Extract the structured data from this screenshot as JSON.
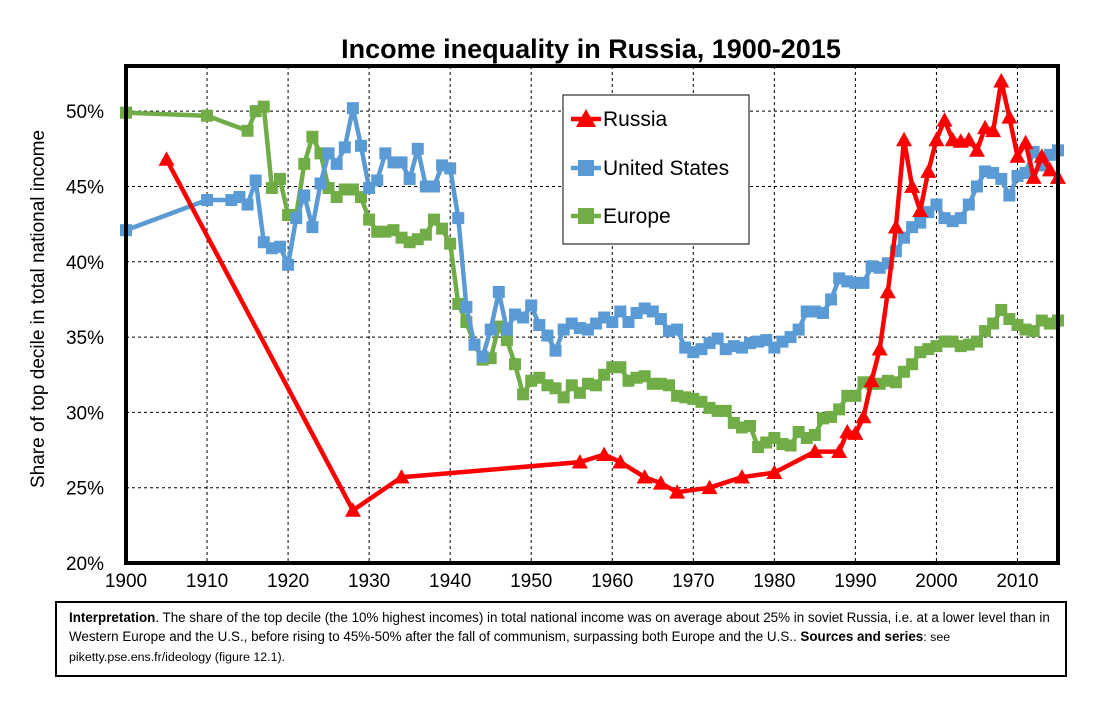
{
  "chart_data": {
    "type": "line",
    "title": "Income inequality in Russia, 1900-2015",
    "xlabel": "",
    "ylabel": "Share of top decile in total national income",
    "xlim": [
      1900,
      2015
    ],
    "ylim": [
      0.2,
      0.53
    ],
    "x_ticks": [
      1900,
      1910,
      1920,
      1930,
      1940,
      1950,
      1960,
      1970,
      1980,
      1990,
      2000,
      2010
    ],
    "x_tick_labels": [
      "1900",
      "1910",
      "1920",
      "1930",
      "1940",
      "1950",
      "1960",
      "1970",
      "1980",
      "1990",
      "2000",
      "2010"
    ],
    "y_ticks": [
      0.2,
      0.25,
      0.3,
      0.35,
      0.4,
      0.45,
      0.5
    ],
    "y_tick_labels": [
      "20%",
      "25%",
      "30%",
      "35%",
      "40%",
      "45%",
      "50%"
    ],
    "grid": true,
    "legend_position": "top-center",
    "series": [
      {
        "name": "Russia",
        "color": "#ff0000",
        "marker": "triangle",
        "points": [
          [
            1905,
            0.468
          ],
          [
            1928,
            0.235
          ],
          [
            1934,
            0.257
          ],
          [
            1956,
            0.267
          ],
          [
            1959,
            0.272
          ],
          [
            1961,
            0.267
          ],
          [
            1964,
            0.257
          ],
          [
            1966,
            0.253
          ],
          [
            1968,
            0.247
          ],
          [
            1972,
            0.25
          ],
          [
            1976,
            0.257
          ],
          [
            1980,
            0.26
          ],
          [
            1985,
            0.274
          ],
          [
            1988,
            0.274
          ],
          [
            1989,
            0.287
          ],
          [
            1990,
            0.286
          ],
          [
            1991,
            0.297
          ],
          [
            1992,
            0.321
          ],
          [
            1993,
            0.342
          ],
          [
            1994,
            0.38
          ],
          [
            1995,
            0.423
          ],
          [
            1996,
            0.481
          ],
          [
            1997,
            0.45
          ],
          [
            1998,
            0.434
          ],
          [
            1999,
            0.46
          ],
          [
            2000,
            0.481
          ],
          [
            2001,
            0.494
          ],
          [
            2002,
            0.481
          ],
          [
            2003,
            0.48
          ],
          [
            2004,
            0.481
          ],
          [
            2005,
            0.474
          ],
          [
            2006,
            0.489
          ],
          [
            2007,
            0.487
          ],
          [
            2008,
            0.52
          ],
          [
            2009,
            0.496
          ],
          [
            2010,
            0.47
          ],
          [
            2011,
            0.479
          ],
          [
            2012,
            0.456
          ],
          [
            2013,
            0.47
          ],
          [
            2014,
            0.461
          ],
          [
            2015,
            0.456
          ]
        ]
      },
      {
        "name": "United States",
        "color": "#5b9bd5",
        "marker": "square",
        "points": [
          [
            1900,
            0.421
          ],
          [
            1910,
            0.441
          ],
          [
            1913,
            0.441
          ],
          [
            1914,
            0.443
          ],
          [
            1915,
            0.438
          ],
          [
            1916,
            0.454
          ],
          [
            1917,
            0.413
          ],
          [
            1918,
            0.409
          ],
          [
            1919,
            0.41
          ],
          [
            1920,
            0.398
          ],
          [
            1921,
            0.429
          ],
          [
            1922,
            0.444
          ],
          [
            1923,
            0.423
          ],
          [
            1924,
            0.452
          ],
          [
            1925,
            0.472
          ],
          [
            1926,
            0.465
          ],
          [
            1927,
            0.476
          ],
          [
            1928,
            0.502
          ],
          [
            1929,
            0.477
          ],
          [
            1930,
            0.449
          ],
          [
            1931,
            0.454
          ],
          [
            1932,
            0.472
          ],
          [
            1933,
            0.466
          ],
          [
            1934,
            0.466
          ],
          [
            1935,
            0.455
          ],
          [
            1936,
            0.475
          ],
          [
            1937,
            0.45
          ],
          [
            1938,
            0.45
          ],
          [
            1939,
            0.464
          ],
          [
            1940,
            0.462
          ],
          [
            1941,
            0.429
          ],
          [
            1942,
            0.37
          ],
          [
            1943,
            0.345
          ],
          [
            1944,
            0.337
          ],
          [
            1945,
            0.355
          ],
          [
            1946,
            0.38
          ],
          [
            1947,
            0.355
          ],
          [
            1948,
            0.365
          ],
          [
            1949,
            0.363
          ],
          [
            1950,
            0.371
          ],
          [
            1951,
            0.358
          ],
          [
            1952,
            0.351
          ],
          [
            1953,
            0.341
          ],
          [
            1954,
            0.355
          ],
          [
            1955,
            0.359
          ],
          [
            1956,
            0.356
          ],
          [
            1957,
            0.355
          ],
          [
            1958,
            0.359
          ],
          [
            1959,
            0.363
          ],
          [
            1960,
            0.36
          ],
          [
            1961,
            0.367
          ],
          [
            1962,
            0.36
          ],
          [
            1963,
            0.366
          ],
          [
            1964,
            0.369
          ],
          [
            1965,
            0.367
          ],
          [
            1966,
            0.362
          ],
          [
            1967,
            0.354
          ],
          [
            1968,
            0.355
          ],
          [
            1969,
            0.343
          ],
          [
            1970,
            0.34
          ],
          [
            1971,
            0.342
          ],
          [
            1972,
            0.346
          ],
          [
            1973,
            0.349
          ],
          [
            1974,
            0.342
          ],
          [
            1975,
            0.344
          ],
          [
            1976,
            0.343
          ],
          [
            1977,
            0.346
          ],
          [
            1978,
            0.347
          ],
          [
            1979,
            0.348
          ],
          [
            1980,
            0.343
          ],
          [
            1981,
            0.347
          ],
          [
            1982,
            0.35
          ],
          [
            1983,
            0.355
          ],
          [
            1984,
            0.367
          ],
          [
            1985,
            0.367
          ],
          [
            1986,
            0.366
          ],
          [
            1987,
            0.375
          ],
          [
            1988,
            0.389
          ],
          [
            1989,
            0.387
          ],
          [
            1990,
            0.386
          ],
          [
            1991,
            0.386
          ],
          [
            1992,
            0.397
          ],
          [
            1993,
            0.396
          ],
          [
            1994,
            0.399
          ],
          [
            1995,
            0.407
          ],
          [
            1996,
            0.416
          ],
          [
            1997,
            0.423
          ],
          [
            1998,
            0.426
          ],
          [
            1999,
            0.433
          ],
          [
            2000,
            0.438
          ],
          [
            2001,
            0.429
          ],
          [
            2002,
            0.427
          ],
          [
            2003,
            0.429
          ],
          [
            2004,
            0.438
          ],
          [
            2005,
            0.45
          ],
          [
            2006,
            0.46
          ],
          [
            2007,
            0.459
          ],
          [
            2008,
            0.455
          ],
          [
            2009,
            0.444
          ],
          [
            2010,
            0.457
          ],
          [
            2011,
            0.459
          ],
          [
            2012,
            0.473
          ],
          [
            2013,
            0.464
          ],
          [
            2014,
            0.471
          ],
          [
            2015,
            0.474
          ]
        ]
      },
      {
        "name": "Europe",
        "color": "#70ad47",
        "marker": "square",
        "points": [
          [
            1900,
            0.499
          ],
          [
            1910,
            0.497
          ],
          [
            1915,
            0.487
          ],
          [
            1916,
            0.5
          ],
          [
            1917,
            0.503
          ],
          [
            1918,
            0.449
          ],
          [
            1919,
            0.455
          ],
          [
            1920,
            0.431
          ],
          [
            1921,
            0.431
          ],
          [
            1922,
            0.465
          ],
          [
            1923,
            0.483
          ],
          [
            1924,
            0.472
          ],
          [
            1925,
            0.449
          ],
          [
            1926,
            0.443
          ],
          [
            1927,
            0.448
          ],
          [
            1928,
            0.448
          ],
          [
            1929,
            0.443
          ],
          [
            1930,
            0.428
          ],
          [
            1931,
            0.42
          ],
          [
            1932,
            0.42
          ],
          [
            1933,
            0.421
          ],
          [
            1934,
            0.416
          ],
          [
            1935,
            0.413
          ],
          [
            1936,
            0.415
          ],
          [
            1937,
            0.418
          ],
          [
            1938,
            0.428
          ],
          [
            1939,
            0.422
          ],
          [
            1940,
            0.412
          ],
          [
            1941,
            0.372
          ],
          [
            1942,
            0.36
          ],
          [
            1943,
            0.345
          ],
          [
            1944,
            0.335
          ],
          [
            1945,
            0.336
          ],
          [
            1946,
            0.357
          ],
          [
            1947,
            0.348
          ],
          [
            1948,
            0.332
          ],
          [
            1949,
            0.312
          ],
          [
            1950,
            0.321
          ],
          [
            1951,
            0.323
          ],
          [
            1952,
            0.318
          ],
          [
            1953,
            0.316
          ],
          [
            1954,
            0.31
          ],
          [
            1955,
            0.318
          ],
          [
            1956,
            0.313
          ],
          [
            1957,
            0.319
          ],
          [
            1958,
            0.318
          ],
          [
            1959,
            0.325
          ],
          [
            1960,
            0.33
          ],
          [
            1961,
            0.33
          ],
          [
            1962,
            0.321
          ],
          [
            1963,
            0.323
          ],
          [
            1964,
            0.324
          ],
          [
            1965,
            0.319
          ],
          [
            1966,
            0.319
          ],
          [
            1967,
            0.318
          ],
          [
            1968,
            0.311
          ],
          [
            1969,
            0.31
          ],
          [
            1970,
            0.309
          ],
          [
            1971,
            0.307
          ],
          [
            1972,
            0.303
          ],
          [
            1973,
            0.301
          ],
          [
            1974,
            0.301
          ],
          [
            1975,
            0.293
          ],
          [
            1976,
            0.29
          ],
          [
            1977,
            0.291
          ],
          [
            1978,
            0.277
          ],
          [
            1979,
            0.28
          ],
          [
            1980,
            0.283
          ],
          [
            1981,
            0.279
          ],
          [
            1982,
            0.278
          ],
          [
            1983,
            0.287
          ],
          [
            1984,
            0.283
          ],
          [
            1985,
            0.285
          ],
          [
            1986,
            0.296
          ],
          [
            1987,
            0.297
          ],
          [
            1988,
            0.302
          ],
          [
            1989,
            0.311
          ],
          [
            1990,
            0.311
          ],
          [
            1991,
            0.32
          ],
          [
            1992,
            0.319
          ],
          [
            1993,
            0.319
          ],
          [
            1994,
            0.321
          ],
          [
            1995,
            0.32
          ],
          [
            1996,
            0.327
          ],
          [
            1997,
            0.332
          ],
          [
            1998,
            0.34
          ],
          [
            1999,
            0.342
          ],
          [
            2000,
            0.344
          ],
          [
            2001,
            0.347
          ],
          [
            2002,
            0.347
          ],
          [
            2003,
            0.344
          ],
          [
            2004,
            0.345
          ],
          [
            2005,
            0.347
          ],
          [
            2006,
            0.354
          ],
          [
            2007,
            0.359
          ],
          [
            2008,
            0.368
          ],
          [
            2009,
            0.362
          ],
          [
            2010,
            0.358
          ],
          [
            2011,
            0.355
          ],
          [
            2012,
            0.354
          ],
          [
            2013,
            0.361
          ],
          [
            2014,
            0.359
          ],
          [
            2015,
            0.361
          ]
        ]
      }
    ]
  },
  "caption": {
    "lead": "Interpretation",
    "body": ". The share of the top decile (the 10% highest incomes) in total national income was on average about 25% in soviet Russia, i.e. at a lower level than in Western Europe and the U.S., before rising to 45%-50% after the fall of communism, surpassing both Europe and the U.S.. ",
    "sources_label": "Sources and series",
    "sources_text": ": see piketty.pse.ens.fr/ideology (figure 12.1)."
  }
}
